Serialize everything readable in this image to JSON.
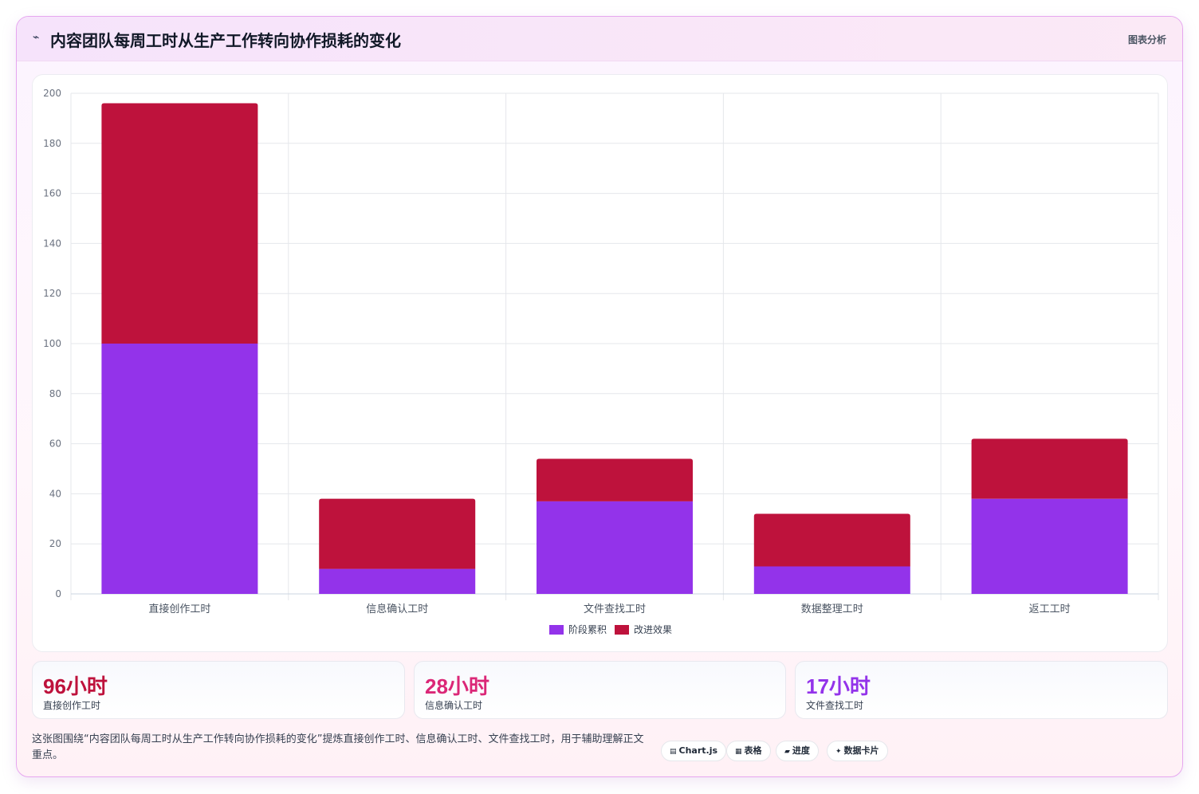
{
  "header": {
    "icon": "chart-icon",
    "icon_glyph": "⌁",
    "title": "内容团队每周工时从生产工作转向协作损耗的变化",
    "action_label": "图表分析"
  },
  "chart_data": {
    "type": "bar",
    "stacked": true,
    "categories": [
      "直接创作工时",
      "信息确认工时",
      "文件查找工时",
      "数据整理工时",
      "返工工时"
    ],
    "series": [
      {
        "name": "阶段累积",
        "color": "#9333ea",
        "values": [
          100,
          10,
          37,
          11,
          38
        ]
      },
      {
        "name": "改进效果",
        "color": "#be123c",
        "values": [
          96,
          28,
          17,
          21,
          24
        ]
      }
    ],
    "ylim": [
      0,
      200
    ],
    "yticks": [
      0,
      20,
      40,
      60,
      80,
      100,
      120,
      140,
      160,
      180,
      200
    ],
    "grid": true,
    "legend_position": "bottom-center"
  },
  "stats": [
    {
      "value": "96小时",
      "label": "直接创作工时",
      "color": "#be123c"
    },
    {
      "value": "28小时",
      "label": "信息确认工时",
      "color": "#db2777"
    },
    {
      "value": "17小时",
      "label": "文件查找工时",
      "color": "#9333ea"
    }
  ],
  "description": "这张图围绕“内容团队每周工时从生产工作转向协作损耗的变化”提炼直接创作工时、信息确认工时、文件查找工时，用于辅助理解正文重点。",
  "pills": [
    {
      "icon": "▤",
      "label": "Chart.js"
    },
    {
      "icon": "▦",
      "label": "表格"
    },
    {
      "icon": "▰",
      "label": "进度"
    },
    {
      "icon": "✦",
      "label": "数据卡片"
    }
  ]
}
